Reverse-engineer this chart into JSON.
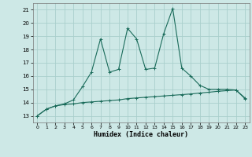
{
  "title": "",
  "xlabel": "Humidex (Indice chaleur)",
  "ylabel": "",
  "background_color": "#cde8e6",
  "grid_color": "#aacfcc",
  "line_color": "#1a6b5a",
  "xlim": [
    -0.5,
    23.5
  ],
  "ylim": [
    12.5,
    21.5
  ],
  "xticks": [
    0,
    1,
    2,
    3,
    4,
    5,
    6,
    7,
    8,
    9,
    10,
    11,
    12,
    13,
    14,
    15,
    16,
    17,
    18,
    19,
    20,
    21,
    22,
    23
  ],
  "yticks": [
    13,
    14,
    15,
    16,
    17,
    18,
    19,
    20,
    21
  ],
  "series1_x": [
    0,
    1,
    2,
    3,
    4,
    5,
    6,
    7,
    8,
    9,
    10,
    11,
    12,
    13,
    14,
    15,
    16,
    17,
    18,
    19,
    20,
    21,
    22,
    23
  ],
  "series1_y": [
    13.0,
    13.5,
    13.75,
    13.85,
    13.9,
    14.0,
    14.05,
    14.1,
    14.15,
    14.2,
    14.3,
    14.35,
    14.4,
    14.45,
    14.5,
    14.55,
    14.6,
    14.65,
    14.72,
    14.78,
    14.85,
    14.9,
    14.95,
    14.35
  ],
  "series2_x": [
    0,
    1,
    2,
    3,
    4,
    5,
    6,
    7,
    8,
    9,
    10,
    11,
    12,
    13,
    14,
    15,
    16,
    17,
    18,
    19,
    20,
    21,
    22,
    23
  ],
  "series2_y": [
    13.0,
    13.5,
    13.75,
    13.9,
    14.2,
    15.2,
    16.3,
    18.8,
    16.3,
    16.5,
    19.6,
    18.8,
    16.5,
    16.6,
    19.2,
    21.1,
    16.6,
    16.0,
    15.3,
    15.0,
    15.0,
    15.0,
    14.95,
    14.3
  ]
}
